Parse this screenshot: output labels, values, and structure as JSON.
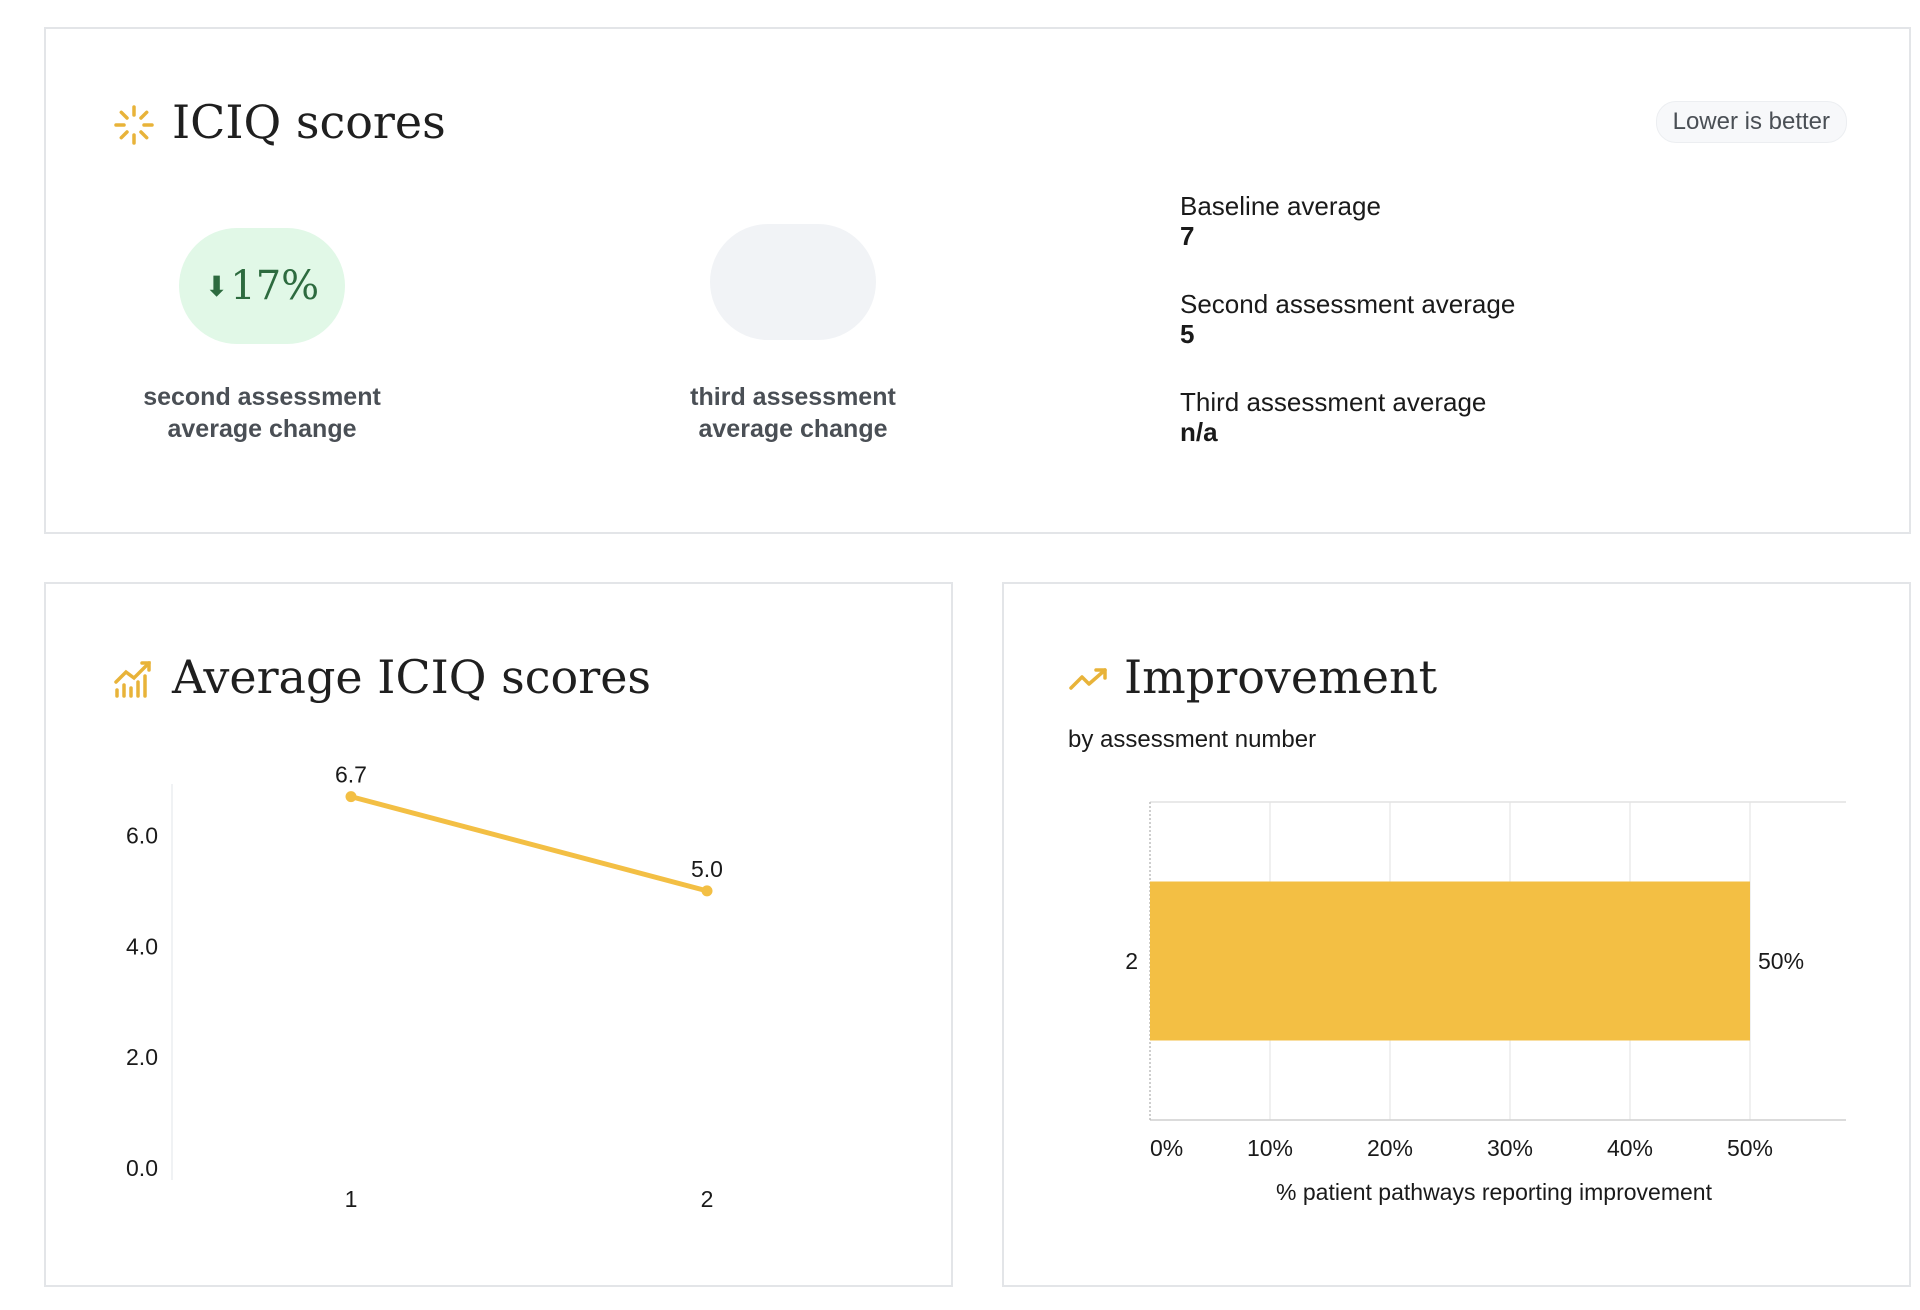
{
  "scores_card": {
    "title": "ICIQ scores",
    "badge": "Lower is better",
    "second_change": {
      "arrow": "⬇",
      "value": "17%",
      "label_line1": "second assessment",
      "label_line2": "average change"
    },
    "third_change": {
      "value": "",
      "label_line1": "third assessment",
      "label_line2": "average change"
    },
    "stats": [
      {
        "label": "Baseline average",
        "value": "7"
      },
      {
        "label": "Second assessment average",
        "value": "5"
      },
      {
        "label": "Third assessment average",
        "value": "n/a"
      }
    ],
    "colors": {
      "positive_bg": "#e1f8e7",
      "positive_text": "#2d6b3f",
      "neutral_bg": "#f1f3f6",
      "icon": "#e8b339"
    },
    "icon": "loader-icon"
  },
  "chart_data": [
    {
      "type": "line",
      "title": "Average ICIQ scores",
      "icon": "bar-chart-icon",
      "x": [
        "1",
        "2"
      ],
      "series": [
        {
          "values": [
            6.7,
            5.0
          ],
          "labels": [
            "6.7",
            "5.0"
          ]
        }
      ],
      "yticks": [
        "0.0",
        "2.0",
        "4.0",
        "6.0"
      ],
      "ylim": [
        0,
        7
      ],
      "grid": false,
      "color": "#f3bf44"
    },
    {
      "type": "bar",
      "orientation": "horizontal",
      "title": "Improvement",
      "subtitle": "by assessment number",
      "icon": "trending-up-icon",
      "categories": [
        "2"
      ],
      "values": [
        50
      ],
      "value_labels": [
        "50%"
      ],
      "xticks": [
        "0%",
        "10%",
        "20%",
        "30%",
        "40%",
        "50%"
      ],
      "xlabel": "% patient pathways reporting improvement",
      "xlim": [
        0,
        58
      ],
      "grid": true,
      "color": "#f3bf44"
    }
  ]
}
